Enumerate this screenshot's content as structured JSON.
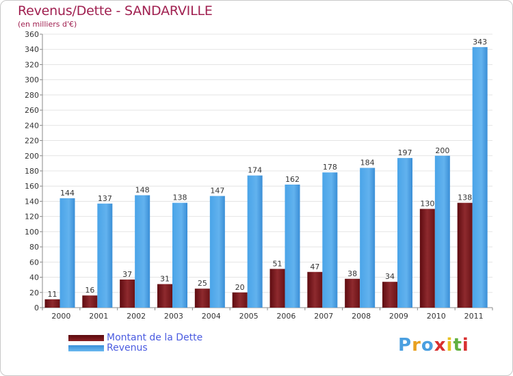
{
  "title": "Revenus/Dette - SANDARVILLE",
  "subtitle": "(en milliers d'€)",
  "colors": {
    "dette": "#7a1418",
    "revenus": "#4a9fe0",
    "title": "#a02050",
    "legend_text": "#4a5be0"
  },
  "legend": [
    {
      "label": "Montant de la Dette",
      "color": "#7a1418"
    },
    {
      "label": "Revenus",
      "color": "#4a9fe0"
    }
  ],
  "logo": {
    "text": "Proxiti"
  },
  "chart_data": {
    "type": "bar",
    "title": "Revenus/Dette - SANDARVILLE",
    "subtitle": "(en milliers d'€)",
    "categories": [
      "2000",
      "2001",
      "2002",
      "2003",
      "2004",
      "2005",
      "2006",
      "2007",
      "2008",
      "2009",
      "2010",
      "2011"
    ],
    "series": [
      {
        "name": "Montant de la Dette",
        "values": [
          11,
          16,
          37,
          31,
          25,
          20,
          51,
          47,
          38,
          34,
          130,
          138
        ]
      },
      {
        "name": "Revenus",
        "values": [
          144,
          137,
          148,
          138,
          147,
          174,
          162,
          178,
          184,
          197,
          200,
          343
        ]
      }
    ],
    "ylim": [
      0,
      360
    ],
    "yticks": [
      0,
      20,
      40,
      60,
      80,
      100,
      120,
      140,
      160,
      180,
      200,
      220,
      240,
      260,
      280,
      300,
      320,
      340,
      360
    ],
    "grid": true,
    "legend_position": "bottom-left"
  }
}
